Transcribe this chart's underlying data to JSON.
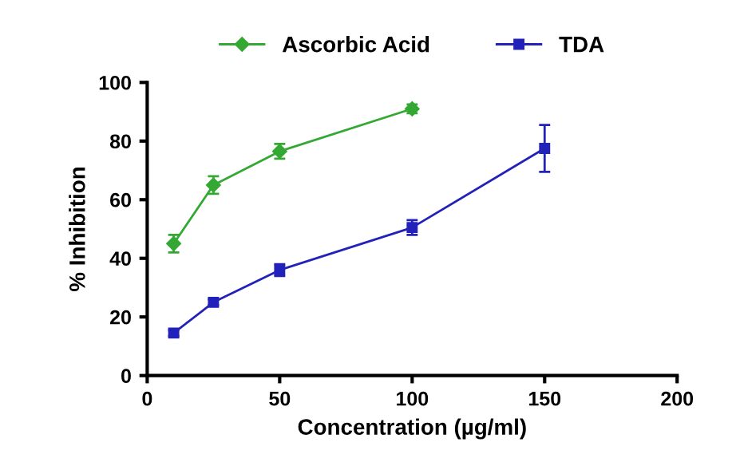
{
  "chart_data": {
    "type": "line",
    "xlabel": "Concentration (µg/ml)",
    "ylabel": "% Inhibition",
    "xlim": [
      0,
      200
    ],
    "xticks": [
      0,
      50,
      100,
      150,
      200
    ],
    "ylim": [
      0,
      100
    ],
    "yticks": [
      0,
      20,
      40,
      60,
      80,
      100
    ],
    "grid": false,
    "legend": "top",
    "line_style": "solid",
    "series": [
      {
        "name": "Ascorbic Acid",
        "color": "#33a833",
        "marker": "diamond",
        "x": [
          10,
          25,
          50,
          100
        ],
        "values": [
          45,
          65,
          76.5,
          91
        ],
        "errors": [
          3,
          3,
          2.5,
          1.5
        ]
      },
      {
        "name": "TDA",
        "color": "#2222bb",
        "marker": "square",
        "x": [
          10,
          25,
          50,
          100,
          150
        ],
        "values": [
          14.5,
          25,
          36,
          50.5,
          77.5
        ],
        "errors": [
          1,
          1,
          2,
          2.5,
          8
        ]
      }
    ]
  }
}
